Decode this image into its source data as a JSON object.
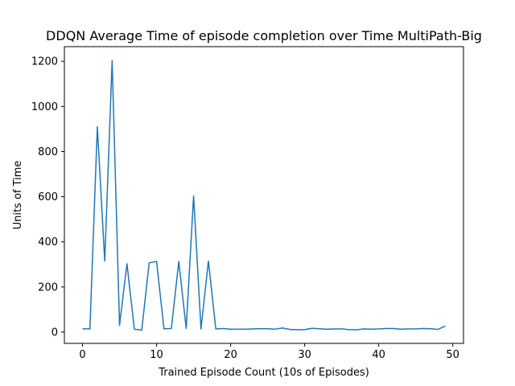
{
  "chart_data": {
    "type": "line",
    "title": "DDQN Average Time of episode completion over Time MultiPath-Big",
    "xlabel": "Trained Episode Count (10s of Episodes)",
    "ylabel": "Units of Time",
    "xlim": [
      -2.45,
      51.45
    ],
    "ylim": [
      -50,
      1265
    ],
    "xticks": [
      0,
      10,
      20,
      30,
      40,
      50
    ],
    "yticks": [
      0,
      200,
      400,
      600,
      800,
      1000,
      1200
    ],
    "grid": false,
    "series": [
      {
        "color": "#1f77b4",
        "x": [
          0,
          1,
          2,
          3,
          4,
          5,
          6,
          7,
          8,
          9,
          10,
          11,
          12,
          13,
          14,
          15,
          16,
          17,
          18,
          19,
          20,
          21,
          22,
          23,
          24,
          25,
          26,
          27,
          28,
          29,
          30,
          31,
          32,
          33,
          34,
          35,
          36,
          37,
          38,
          39,
          40,
          41,
          42,
          43,
          44,
          45,
          46,
          47,
          48,
          49
        ],
        "y": [
          15,
          14,
          910,
          315,
          1203,
          30,
          303,
          13,
          9,
          307,
          313,
          15,
          16,
          313,
          16,
          603,
          14,
          315,
          14,
          16,
          13,
          13,
          13,
          14,
          15,
          15,
          13,
          18,
          12,
          10,
          11,
          17,
          15,
          13,
          14,
          14,
          11,
          10,
          14,
          13,
          14,
          16,
          16,
          13,
          14,
          14,
          16,
          15,
          12,
          27
        ]
      }
    ]
  }
}
